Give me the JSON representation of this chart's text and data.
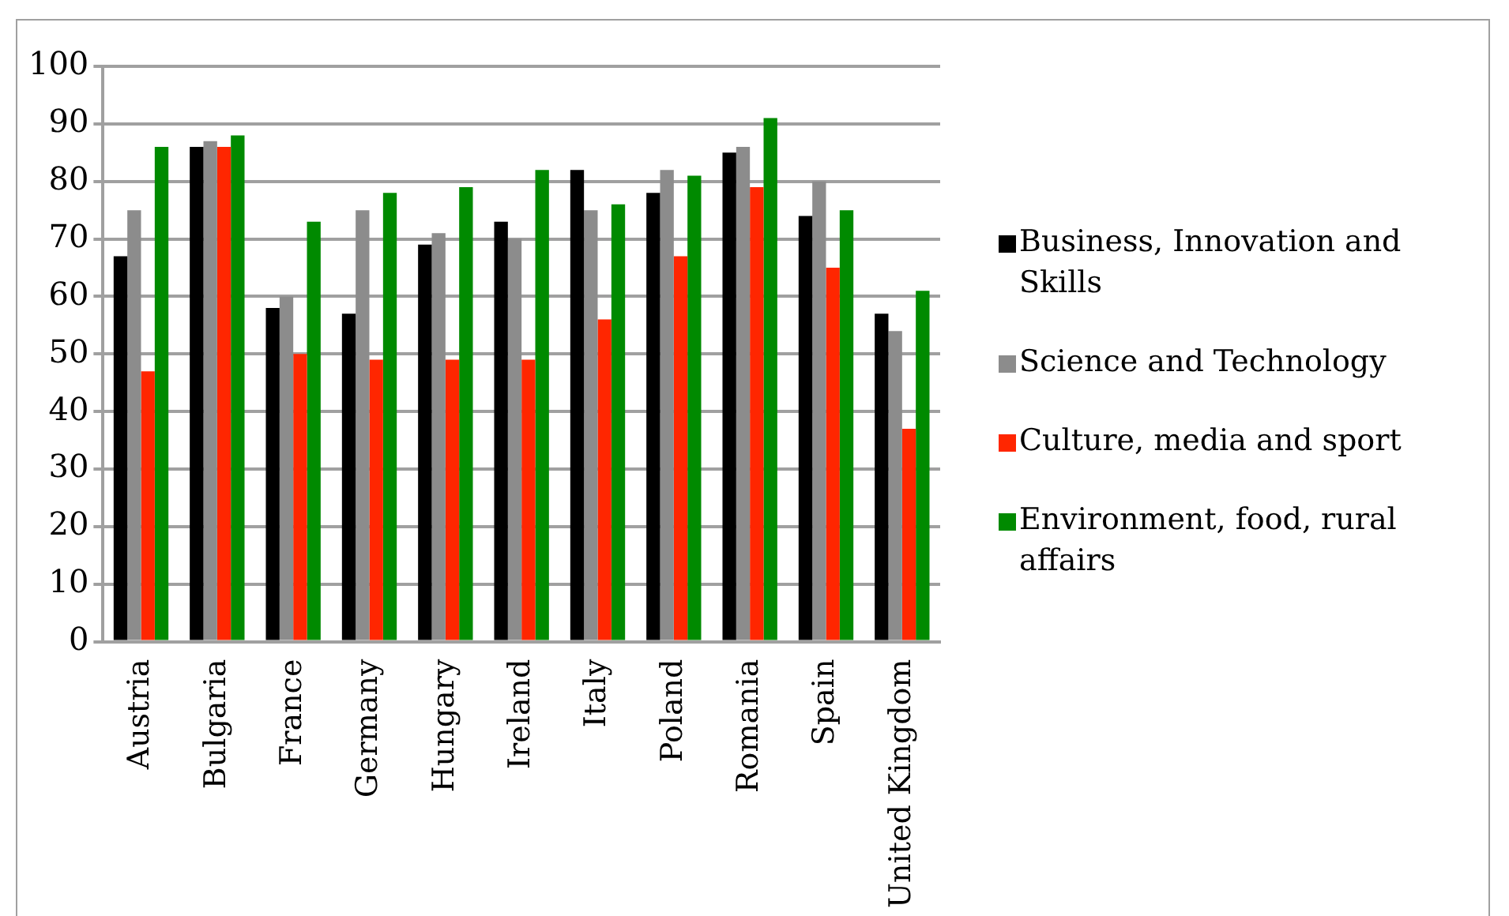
{
  "chart_data": {
    "type": "bar",
    "categories": [
      "Austria",
      "Bulgaria",
      "France",
      "Germany",
      "Hungary",
      "Ireland",
      "Italy",
      "Poland",
      "Romania",
      "Spain",
      "United Kingdom"
    ],
    "series": [
      {
        "name": "Business, Innovation and Skills",
        "color": "#000000",
        "values": [
          67,
          86,
          58,
          57,
          69,
          73,
          82,
          78,
          85,
          74,
          57
        ]
      },
      {
        "name": "Science and Technology",
        "color": "#8c8c8c",
        "values": [
          75,
          87,
          60,
          75,
          71,
          70,
          75,
          82,
          86,
          80,
          54
        ]
      },
      {
        "name": "Culture, media and sport",
        "color": "#ff2600",
        "values": [
          47,
          86,
          50,
          49,
          49,
          49,
          56,
          67,
          79,
          65,
          37
        ]
      },
      {
        "name": "Environment, food, rural affairs",
        "color": "#008a00",
        "values": [
          86,
          88,
          73,
          78,
          79,
          82,
          76,
          81,
          91,
          75,
          61
        ]
      }
    ],
    "ylim": [
      0,
      100
    ],
    "yticks": [
      0,
      10,
      20,
      30,
      40,
      50,
      60,
      70,
      80,
      90,
      100
    ],
    "grid": "y",
    "legend": "right"
  }
}
